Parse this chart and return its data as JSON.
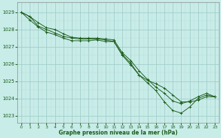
{
  "title": "Graphe pression niveau de la mer (hPa)",
  "bg_color": "#c8ece8",
  "grid_major_color": "#a0ccc8",
  "grid_minor_color": "#b8ddd8",
  "line_color": "#1a5c1a",
  "xlim": [
    -0.5,
    23.5
  ],
  "ylim": [
    1022.6,
    1029.6
  ],
  "yticks": [
    1023,
    1024,
    1025,
    1026,
    1027,
    1028,
    1029
  ],
  "xticks": [
    0,
    1,
    2,
    3,
    4,
    5,
    6,
    7,
    8,
    9,
    10,
    11,
    12,
    13,
    14,
    15,
    16,
    17,
    18,
    19,
    20,
    21,
    22,
    23
  ],
  "series": [
    {
      "x": [
        0,
        1,
        2,
        3,
        4,
        5,
        6,
        7,
        8,
        9,
        10,
        11,
        12,
        13,
        14,
        15,
        16,
        17,
        18,
        19,
        20,
        21,
        22,
        23
      ],
      "y": [
        1029.0,
        1028.75,
        1028.2,
        1028.0,
        1027.8,
        1027.6,
        1027.5,
        1027.45,
        1027.45,
        1027.45,
        1027.4,
        1027.3,
        1026.5,
        1025.95,
        1025.35,
        1024.9,
        1024.45,
        1023.8,
        1023.3,
        1023.15,
        1023.5,
        1024.0,
        1024.2,
        1024.1
      ],
      "markers": [
        0,
        1,
        2,
        3,
        4,
        5,
        6,
        7,
        8,
        9,
        10,
        11,
        12,
        13,
        14,
        15,
        16,
        17,
        18,
        19,
        20,
        21,
        22,
        23
      ]
    },
    {
      "x": [
        0,
        1,
        2,
        3,
        4,
        5,
        6,
        7,
        8,
        9,
        10,
        11,
        12,
        13,
        14,
        15,
        16,
        17,
        18,
        19,
        20,
        21,
        22,
        23
      ],
      "y": [
        1029.0,
        1028.75,
        1028.4,
        1028.1,
        1028.0,
        1027.75,
        1027.55,
        1027.5,
        1027.5,
        1027.5,
        1027.45,
        1027.4,
        1026.65,
        1026.2,
        1025.6,
        1025.1,
        1024.65,
        1024.3,
        1023.85,
        1023.7,
        1023.85,
        1024.1,
        1024.3,
        1024.1
      ],
      "markers": [
        0,
        1,
        2,
        3,
        4,
        5,
        6,
        7,
        8,
        9,
        10,
        11,
        12,
        13,
        14,
        15,
        16,
        17,
        18,
        19,
        20,
        21,
        22,
        23
      ]
    },
    {
      "x": [
        0,
        1,
        2,
        3,
        4,
        5,
        6,
        7,
        8,
        9,
        10,
        11,
        12,
        13,
        14,
        15,
        16,
        17,
        18,
        19,
        20,
        21,
        22,
        23
      ],
      "y": [
        1029.0,
        1028.55,
        1028.15,
        1027.85,
        1027.7,
        1027.5,
        1027.35,
        1027.35,
        1027.35,
        1027.4,
        1027.3,
        1027.3,
        1026.55,
        1026.05,
        1025.35,
        1025.05,
        1024.85,
        1024.6,
        1024.2,
        1023.8,
        1023.8,
        1023.9,
        1024.1,
        1024.1
      ],
      "markers": [
        0,
        1,
        4,
        5,
        6,
        7,
        8,
        9,
        12,
        13,
        14,
        15,
        16,
        17,
        18,
        19,
        20,
        21,
        22,
        23
      ]
    }
  ]
}
